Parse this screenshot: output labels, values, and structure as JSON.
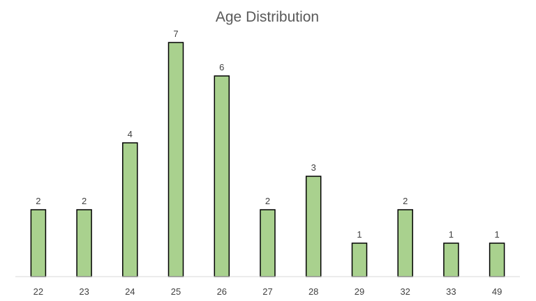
{
  "chart_data": {
    "type": "bar",
    "title": "Age Distribution",
    "categories": [
      "22",
      "23",
      "24",
      "25",
      "26",
      "27",
      "28",
      "29",
      "32",
      "33",
      "49"
    ],
    "values": [
      2,
      2,
      4,
      7,
      6,
      2,
      3,
      1,
      2,
      1,
      1
    ],
    "xlabel": "",
    "ylabel": "",
    "ylim": [
      0,
      7
    ],
    "grid": false,
    "legend": "none",
    "data_labels": true,
    "colors": {
      "bar_fill": "#a9d18e",
      "bar_stroke": "#000000",
      "axis": "#d9d9d9",
      "text": "#404040",
      "title": "#595959"
    }
  }
}
